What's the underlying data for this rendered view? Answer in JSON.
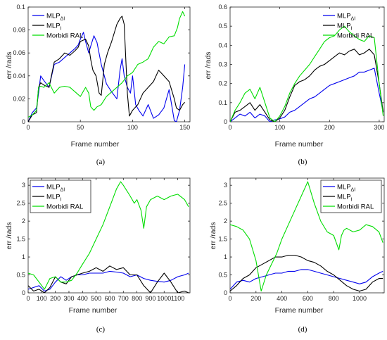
{
  "colors": {
    "mlp_delta": "#0000ee",
    "mlp": "#000000",
    "morbidi": "#00dd00"
  },
  "chart_data": [
    {
      "type": "line",
      "caption": "(a)",
      "xlabel": "Frame number",
      "ylabel": "err /rads",
      "xlim": [
        0,
        155
      ],
      "ylim": [
        0,
        0.1
      ],
      "xticks": [
        0,
        50,
        100,
        150
      ],
      "yticks": [
        0,
        0.02,
        0.04,
        0.06,
        0.08,
        0.1
      ],
      "xtick_labels": [
        "0",
        "50",
        "100",
        "150"
      ],
      "ytick_labels": [
        "0",
        "0.02",
        "0.04",
        "0.06",
        "0.08",
        "0.1"
      ],
      "legend": {
        "position": "top-left",
        "boxed": false
      },
      "series": [
        {
          "name": "MLP",
          "sub": "ΔI",
          "color": "#0000ee",
          "x": [
            0,
            4,
            8,
            10,
            12,
            15,
            20,
            25,
            30,
            35,
            40,
            45,
            48,
            50,
            53,
            55,
            58,
            60,
            63,
            66,
            70,
            75,
            80,
            85,
            88,
            90,
            92,
            95,
            98,
            100,
            103,
            106,
            110,
            115,
            120,
            125,
            130,
            135,
            140,
            142,
            145,
            148,
            150
          ],
          "y": [
            0,
            0.008,
            0.012,
            0.025,
            0.04,
            0.036,
            0.03,
            0.05,
            0.052,
            0.056,
            0.06,
            0.064,
            0.067,
            0.072,
            0.078,
            0.07,
            0.06,
            0.066,
            0.075,
            0.069,
            0.05,
            0.033,
            0.026,
            0.02,
            0.045,
            0.055,
            0.04,
            0.03,
            0.025,
            0.04,
            0.015,
            0.01,
            0.005,
            0.015,
            0.003,
            0.006,
            0.012,
            0.028,
            0.001,
            0.0,
            0.01,
            0.03,
            0.05
          ]
        },
        {
          "name": "MLP",
          "sub": "I",
          "color": "#000000",
          "x": [
            0,
            4,
            8,
            10,
            12,
            15,
            20,
            25,
            30,
            35,
            40,
            45,
            48,
            50,
            55,
            58,
            60,
            62,
            65,
            68,
            70,
            73,
            76,
            80,
            85,
            88,
            90,
            92,
            95,
            97,
            100,
            105,
            110,
            115,
            120,
            125,
            130,
            135,
            140,
            142,
            145,
            148,
            150
          ],
          "y": [
            0,
            0.006,
            0.008,
            0.03,
            0.034,
            0.032,
            0.03,
            0.052,
            0.055,
            0.06,
            0.058,
            0.062,
            0.065,
            0.07,
            0.072,
            0.066,
            0.054,
            0.045,
            0.04,
            0.025,
            0.023,
            0.05,
            0.06,
            0.07,
            0.085,
            0.09,
            0.092,
            0.085,
            0.025,
            0.005,
            0.01,
            0.015,
            0.025,
            0.03,
            0.035,
            0.045,
            0.04,
            0.035,
            0.02,
            0.012,
            0.01,
            0.015,
            0.017
          ]
        },
        {
          "name": "Morbidi RAL",
          "sub": "",
          "color": "#00dd00",
          "x": [
            0,
            4,
            8,
            10,
            12,
            15,
            20,
            25,
            30,
            35,
            40,
            45,
            50,
            55,
            58,
            60,
            63,
            66,
            70,
            75,
            80,
            85,
            90,
            95,
            100,
            105,
            110,
            115,
            120,
            125,
            130,
            135,
            140,
            143,
            145,
            148,
            150
          ],
          "y": [
            0.004,
            0.006,
            0.01,
            0.03,
            0.031,
            0.03,
            0.034,
            0.025,
            0.03,
            0.031,
            0.03,
            0.026,
            0.022,
            0.03,
            0.025,
            0.013,
            0.01,
            0.013,
            0.015,
            0.022,
            0.026,
            0.03,
            0.034,
            0.04,
            0.043,
            0.05,
            0.052,
            0.055,
            0.065,
            0.07,
            0.068,
            0.074,
            0.075,
            0.082,
            0.09,
            0.096,
            0.092
          ]
        }
      ]
    },
    {
      "type": "line",
      "caption": "(b)",
      "xlabel": "Frame number",
      "ylabel": "err /rads",
      "xlim": [
        0,
        310
      ],
      "ylim": [
        0,
        0.6
      ],
      "xticks": [
        0,
        100,
        200,
        300
      ],
      "yticks": [
        0,
        0.1,
        0.2,
        0.3,
        0.4,
        0.5,
        0.6
      ],
      "xtick_labels": [
        "0",
        "100",
        "200",
        "300"
      ],
      "ytick_labels": [
        "0",
        "0.1",
        "0.2",
        "0.3",
        "0.4",
        "0.5",
        "0.6"
      ],
      "legend": {
        "position": "top-right",
        "boxed": false
      },
      "series": [
        {
          "name": "MLP",
          "sub": "ΔI",
          "color": "#0000ee",
          "x": [
            0,
            10,
            20,
            30,
            40,
            50,
            60,
            70,
            80,
            90,
            100,
            110,
            120,
            130,
            140,
            150,
            160,
            170,
            180,
            190,
            200,
            210,
            220,
            230,
            240,
            250,
            260,
            270,
            280,
            290,
            300,
            308
          ],
          "y": [
            0,
            0.02,
            0.04,
            0.03,
            0.05,
            0.02,
            0.04,
            0.03,
            0.0,
            0.01,
            0.015,
            0.025,
            0.05,
            0.06,
            0.08,
            0.1,
            0.12,
            0.13,
            0.15,
            0.17,
            0.19,
            0.2,
            0.21,
            0.22,
            0.23,
            0.24,
            0.26,
            0.26,
            0.27,
            0.28,
            0.15,
            0.05
          ]
        },
        {
          "name": "MLP",
          "sub": "I",
          "color": "#000000",
          "x": [
            0,
            10,
            20,
            30,
            40,
            50,
            60,
            70,
            80,
            90,
            100,
            110,
            120,
            130,
            140,
            150,
            160,
            170,
            180,
            190,
            200,
            210,
            220,
            230,
            240,
            250,
            260,
            270,
            280,
            290,
            300,
            308
          ],
          "y": [
            0,
            0.05,
            0.06,
            0.08,
            0.1,
            0.06,
            0.09,
            0.05,
            0.01,
            0.0,
            0.02,
            0.06,
            0.13,
            0.19,
            0.21,
            0.22,
            0.24,
            0.27,
            0.29,
            0.3,
            0.32,
            0.34,
            0.36,
            0.35,
            0.37,
            0.38,
            0.35,
            0.36,
            0.38,
            0.35,
            0.2,
            0.05
          ]
        },
        {
          "name": "Morbidi RAL",
          "sub": "",
          "color": "#00dd00",
          "x": [
            0,
            10,
            20,
            30,
            40,
            50,
            60,
            70,
            80,
            90,
            100,
            110,
            120,
            130,
            140,
            150,
            160,
            170,
            180,
            190,
            200,
            210,
            220,
            230,
            240,
            250,
            260,
            270,
            280,
            290,
            300,
            308
          ],
          "y": [
            0,
            0.06,
            0.1,
            0.15,
            0.17,
            0.12,
            0.18,
            0.1,
            0.02,
            0.0,
            0.03,
            0.08,
            0.15,
            0.2,
            0.24,
            0.27,
            0.3,
            0.34,
            0.38,
            0.42,
            0.44,
            0.45,
            0.48,
            0.5,
            0.47,
            0.45,
            0.43,
            0.42,
            0.45,
            0.44,
            0.2,
            0.03
          ]
        }
      ]
    },
    {
      "type": "line",
      "caption": "(c)",
      "xlabel": "Frame number",
      "ylabel": "err /rads",
      "xlim": [
        0,
        1190
      ],
      "ylim": [
        0,
        3.2
      ],
      "xticks": [
        0,
        100,
        200,
        300,
        400,
        500,
        600,
        700,
        800,
        900,
        1000,
        1100
      ],
      "yticks": [
        0,
        0.5,
        1,
        1.5,
        2,
        2.5,
        3
      ],
      "xtick_labels": [
        "0",
        "100",
        "200",
        "300",
        "400",
        "500",
        "600",
        "700",
        "800",
        "900",
        "1000",
        "1100"
      ],
      "ytick_labels": [
        "0",
        "0.5",
        "1",
        "1.5",
        "2",
        "2.5",
        "3"
      ],
      "legend": {
        "position": "top-left",
        "boxed": true
      },
      "series": [
        {
          "name": "MLP",
          "sub": "ΔI",
          "color": "#0000ee",
          "x": [
            0,
            40,
            80,
            120,
            160,
            200,
            240,
            280,
            320,
            360,
            400,
            450,
            500,
            550,
            600,
            650,
            700,
            750,
            800,
            850,
            900,
            950,
            1000,
            1050,
            1100,
            1150,
            1180
          ],
          "y": [
            0.1,
            0.15,
            0.2,
            0.05,
            0.1,
            0.3,
            0.45,
            0.35,
            0.45,
            0.5,
            0.5,
            0.55,
            0.55,
            0.55,
            0.6,
            0.58,
            0.55,
            0.45,
            0.5,
            0.4,
            0.35,
            0.32,
            0.3,
            0.35,
            0.45,
            0.5,
            0.55
          ]
        },
        {
          "name": "MLP",
          "sub": "I",
          "color": "#000000",
          "x": [
            0,
            40,
            80,
            120,
            160,
            200,
            240,
            280,
            320,
            360,
            400,
            450,
            500,
            550,
            600,
            650,
            700,
            750,
            800,
            850,
            900,
            950,
            1000,
            1050,
            1100,
            1150,
            1180
          ],
          "y": [
            0.2,
            0.05,
            0.1,
            0.0,
            0.15,
            0.45,
            0.3,
            0.25,
            0.45,
            0.5,
            0.55,
            0.6,
            0.7,
            0.6,
            0.75,
            0.65,
            0.7,
            0.5,
            0.5,
            0.2,
            0.0,
            0.3,
            0.55,
            0.3,
            0.0,
            0.05,
            0.0
          ]
        },
        {
          "name": "Morbidi RAL",
          "sub": "",
          "color": "#00dd00",
          "x": [
            0,
            40,
            80,
            120,
            160,
            200,
            240,
            280,
            320,
            360,
            400,
            450,
            500,
            550,
            600,
            650,
            680,
            700,
            750,
            780,
            800,
            830,
            850,
            870,
            900,
            950,
            1000,
            1050,
            1100,
            1150,
            1180
          ],
          "y": [
            0.55,
            0.5,
            0.3,
            0.1,
            0.4,
            0.45,
            0.3,
            0.3,
            0.35,
            0.55,
            0.8,
            1.1,
            1.5,
            1.9,
            2.4,
            2.9,
            3.1,
            3.0,
            2.7,
            2.5,
            2.6,
            2.3,
            1.8,
            2.4,
            2.6,
            2.7,
            2.6,
            2.7,
            2.75,
            2.6,
            2.4
          ]
        }
      ]
    },
    {
      "type": "line",
      "caption": "(d)",
      "xlabel": "Frame number",
      "ylabel": "err /rads",
      "xlim": [
        0,
        1190
      ],
      "ylim": [
        0,
        3.2
      ],
      "xticks": [
        0,
        200,
        400,
        600,
        800,
        1000
      ],
      "yticks": [
        0,
        0.5,
        1,
        1.5,
        2,
        2.5,
        3
      ],
      "xtick_labels": [
        "0",
        "200",
        "400",
        "600",
        "800",
        "1000"
      ],
      "ytick_labels": [
        "0",
        "0.5",
        "1",
        "1.5",
        "2",
        "2.5",
        "3"
      ],
      "legend": {
        "position": "top-right",
        "boxed": true
      },
      "series": [
        {
          "name": "MLP",
          "sub": "ΔI",
          "color": "#0000ee",
          "x": [
            0,
            50,
            100,
            150,
            200,
            250,
            300,
            350,
            400,
            450,
            500,
            550,
            600,
            650,
            700,
            750,
            800,
            850,
            900,
            950,
            1000,
            1050,
            1100,
            1150,
            1180
          ],
          "y": [
            0.1,
            0.3,
            0.35,
            0.3,
            0.4,
            0.45,
            0.5,
            0.55,
            0.55,
            0.6,
            0.6,
            0.65,
            0.65,
            0.6,
            0.55,
            0.5,
            0.45,
            0.4,
            0.35,
            0.3,
            0.25,
            0.3,
            0.45,
            0.55,
            0.6
          ]
        },
        {
          "name": "MLP",
          "sub": "I",
          "color": "#000000",
          "x": [
            0,
            50,
            100,
            150,
            200,
            250,
            300,
            350,
            400,
            450,
            500,
            550,
            600,
            650,
            700,
            750,
            800,
            850,
            900,
            950,
            1000,
            1050,
            1100,
            1150,
            1180
          ],
          "y": [
            0.05,
            0.2,
            0.4,
            0.5,
            0.7,
            0.8,
            0.9,
            1.0,
            1.0,
            1.05,
            1.05,
            1.0,
            0.9,
            0.85,
            0.75,
            0.6,
            0.5,
            0.35,
            0.2,
            0.1,
            0.05,
            0.1,
            0.3,
            0.4,
            0.4
          ]
        },
        {
          "name": "Morbidi RAL",
          "sub": "",
          "color": "#00dd00",
          "x": [
            0,
            50,
            100,
            150,
            200,
            240,
            280,
            320,
            360,
            400,
            450,
            500,
            550,
            600,
            650,
            700,
            750,
            800,
            840,
            860,
            880,
            900,
            950,
            1000,
            1050,
            1100,
            1150,
            1180
          ],
          "y": [
            1.9,
            1.85,
            1.75,
            1.5,
            0.9,
            0.05,
            0.5,
            0.8,
            1.1,
            1.5,
            1.9,
            2.3,
            2.7,
            3.1,
            2.5,
            2.0,
            1.7,
            1.6,
            1.2,
            1.6,
            1.75,
            1.8,
            1.7,
            1.75,
            1.9,
            1.85,
            1.7,
            1.4
          ]
        }
      ]
    }
  ]
}
